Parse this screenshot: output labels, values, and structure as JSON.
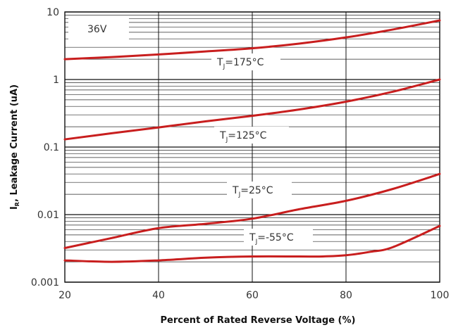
{
  "chart_data": {
    "type": "line",
    "title": "",
    "annotation": "36V",
    "xlabel": "Percent of Rated Reverse Voltage (%)",
    "ylabel_main": "I",
    "ylabel_sub": "R",
    "ylabel_rest": ", Leakage Current (uA)",
    "xlim": [
      20,
      100
    ],
    "ylim": [
      0.001,
      10
    ],
    "yscale": "log",
    "grid": true,
    "x_ticks": [
      "20",
      "40",
      "60",
      "80",
      "100"
    ],
    "y_ticks": [
      "0.001",
      "0.01",
      "0.1",
      "1",
      "10"
    ],
    "curve_color": "#c81e1e",
    "series": [
      {
        "name_main": "T",
        "name_sub": "J",
        "name_rest": "=175°C",
        "x": [
          20,
          30,
          40,
          50,
          60,
          70,
          80,
          90,
          100
        ],
        "y": [
          2.0,
          2.15,
          2.35,
          2.6,
          2.9,
          3.4,
          4.2,
          5.5,
          7.5
        ]
      },
      {
        "name_main": "T",
        "name_sub": "J",
        "name_rest": "=125°C",
        "x": [
          20,
          30,
          40,
          50,
          60,
          70,
          80,
          90,
          100
        ],
        "y": [
          0.13,
          0.16,
          0.195,
          0.24,
          0.29,
          0.36,
          0.47,
          0.66,
          1.0
        ]
      },
      {
        "name_main": "T",
        "name_sub": "J",
        "name_rest": "=25°C",
        "x": [
          20,
          30,
          40,
          50,
          60,
          70,
          80,
          90,
          100
        ],
        "y": [
          0.0032,
          0.0045,
          0.0063,
          0.0073,
          0.0087,
          0.012,
          0.016,
          0.024,
          0.04
        ]
      },
      {
        "name_main": "T",
        "name_sub": "J",
        "name_rest": "=-55°C",
        "x": [
          20,
          30,
          40,
          50,
          60,
          70,
          75,
          80,
          85,
          90,
          100
        ],
        "y": [
          0.0021,
          0.002,
          0.0021,
          0.0023,
          0.0024,
          0.0024,
          0.0024,
          0.0025,
          0.0028,
          0.0033,
          0.0068
        ]
      }
    ]
  }
}
